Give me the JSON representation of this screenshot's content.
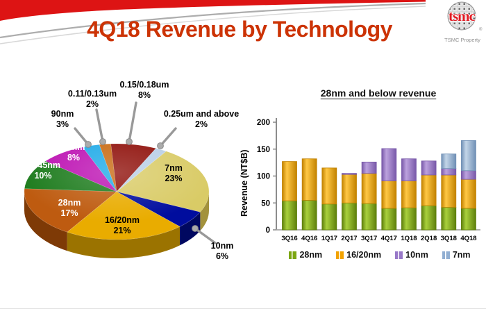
{
  "header": {
    "title": "4Q18 Revenue by Technology",
    "title_color": "#CC3305",
    "banner_red": "#DD1414",
    "logo_text": "tsmc",
    "logo_reg_mark": "®",
    "logo_text_color": "#E01A22",
    "logo_caption": "TSMC Property"
  },
  "chart_data": [
    {
      "type": "pie",
      "style": "3d",
      "start_angle_deg": 32.4,
      "slices": [
        {
          "label": "7nm",
          "pct": 23,
          "color": "#D9CB66",
          "side": "#A3923C",
          "text": "#000000",
          "label_style": "inside"
        },
        {
          "label": "10nm",
          "pct": 6,
          "color": "#000D9E",
          "side": "#000860",
          "text": "#000000",
          "label_style": "callout"
        },
        {
          "label": "16/20nm",
          "pct": 21,
          "color": "#E9AC00",
          "side": "#9B7300",
          "text": "#000000",
          "label_style": "inside"
        },
        {
          "label": "28nm",
          "pct": 17,
          "color": "#BE5B10",
          "side": "#7E3A06",
          "text": "#FFFFFF",
          "label_style": "inside"
        },
        {
          "label": "40/45nm",
          "pct": 10,
          "color": "#1E7C1E",
          "side": "#145214",
          "text": "#FFFFFF",
          "label_style": "inside"
        },
        {
          "label": "65nm",
          "pct": 8,
          "color": "#BD13B3",
          "side": "#7E0C78",
          "text": "#FFFFFF",
          "label_style": "inside"
        },
        {
          "label": "90nm",
          "pct": 3,
          "color": "#1FAAE8",
          "side": "#1578A8",
          "text": "#000000",
          "label_style": "callout"
        },
        {
          "label": "0.11/0.13um",
          "pct": 2,
          "color": "#C96A11",
          "side": "#8A480B",
          "text": "#000000",
          "label_style": "callout"
        },
        {
          "label": "0.15/0.18um",
          "pct": 8,
          "color": "#8E0E08",
          "side": "#5E0905",
          "text": "#000000",
          "label_style": "callout"
        },
        {
          "label": "0.25um and above",
          "pct": 2,
          "color": "#B9CFE6",
          "side": "#8FA8C4",
          "text": "#000000",
          "label_style": "callout"
        }
      ]
    },
    {
      "type": "bar",
      "stacked": true,
      "title": "28nm and below revenue",
      "ylabel": "Revenue (NT$B)",
      "ylim": [
        0,
        200
      ],
      "yticks": [
        0,
        50,
        100,
        150,
        200
      ],
      "grid": false,
      "legend_position": "bottom",
      "categories": [
        "3Q16",
        "4Q16",
        "1Q17",
        "2Q17",
        "3Q17",
        "4Q17",
        "1Q18",
        "2Q18",
        "3Q18",
        "4Q18"
      ],
      "series": [
        {
          "name": "28nm",
          "color": "#7CA612",
          "dark": "#5E7F0C",
          "light": "#A9D03C",
          "values": [
            54,
            55,
            48,
            50,
            49,
            40,
            41,
            45,
            42,
            40
          ]
        },
        {
          "name": "16/20nm",
          "color": "#F2A200",
          "dark": "#C28200",
          "light": "#FFC845",
          "values": [
            73,
            77,
            67,
            53,
            56,
            51,
            50,
            57,
            60,
            54
          ]
        },
        {
          "name": "10nm",
          "color": "#9878C8",
          "dark": "#7858A8",
          "light": "#BCA2DE",
          "values": [
            0,
            0,
            0,
            2,
            21,
            60,
            41,
            26,
            12,
            16
          ]
        },
        {
          "name": "7nm",
          "color": "#92AFD2",
          "dark": "#7090B5",
          "light": "#C3D5E8",
          "values": [
            0,
            0,
            0,
            0,
            0,
            0,
            0,
            0,
            27,
            56
          ]
        }
      ]
    }
  ]
}
